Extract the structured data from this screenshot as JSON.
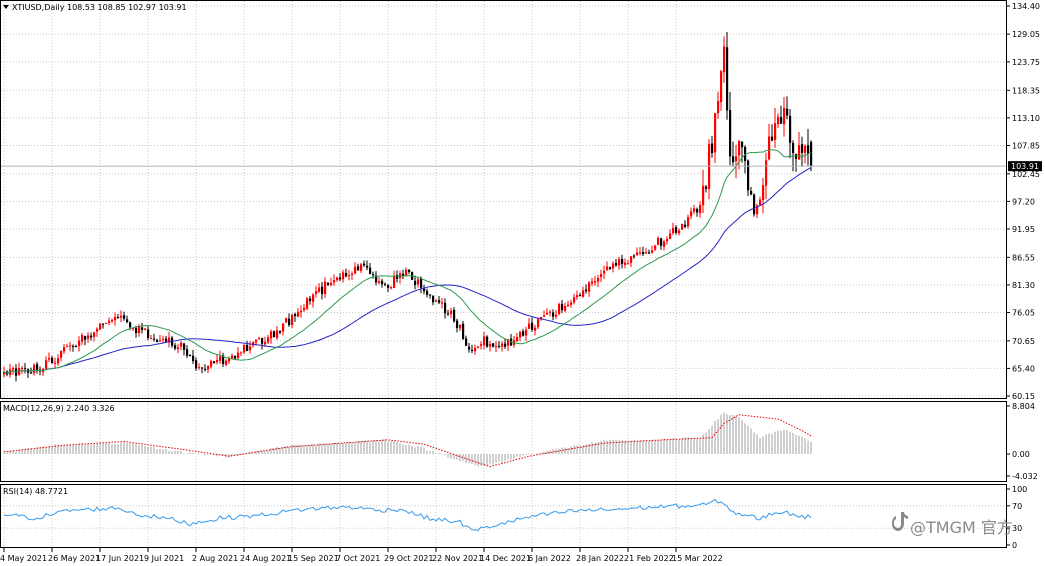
{
  "chart_data": {
    "type": "candlestick",
    "symbol_label": "XTIUSD,Daily",
    "ohlc_readout": "108.53 108.85 102.97 103.91",
    "current_price_label": "103.91",
    "watermark": "@TMGM 官方",
    "colors": {
      "bull": "#ff0000",
      "bear": "#000000",
      "ma_fast": "#2e9a4f",
      "ma_slow": "#2323c8",
      "macd_signal": "#e00000",
      "macd_hist": "#a0a0a0",
      "rsi": "#3399ee",
      "grid": "#c8c8c8",
      "axis": "#000000"
    },
    "price_axis": {
      "ylim": [
        60.15,
        134.4
      ],
      "ticks": [
        "134.40",
        "129.05",
        "123.75",
        "118.35",
        "113.10",
        "107.85",
        "102.45",
        "97.20",
        "91.95",
        "86.55",
        "81.30",
        "76.05",
        "70.65",
        "65.40",
        "60.15"
      ]
    },
    "x_axis": {
      "labels": [
        "4 May 2021",
        "26 May 2021",
        "17 Jun 2021",
        "9 Jul 2021",
        "2 Aug 2021",
        "24 Aug 2021",
        "15 Sep 2021",
        "7 Oct 2021",
        "29 Oct 2021",
        "22 Nov 2021",
        "14 Dec 2021",
        "6 Jan 2022",
        "28 Jan 2022",
        "21 Feb 2022",
        "15 Mar 2022"
      ],
      "bars_per_label": 16
    },
    "anchors": [
      [
        0,
        64.5
      ],
      [
        12,
        65.5
      ],
      [
        22,
        69.5
      ],
      [
        38,
        75.5
      ],
      [
        42,
        73.5
      ],
      [
        52,
        71.0
      ],
      [
        60,
        69.5
      ],
      [
        65,
        65.5
      ],
      [
        70,
        66.5
      ],
      [
        80,
        69.0
      ],
      [
        86,
        70.5
      ],
      [
        92,
        73.0
      ],
      [
        102,
        78.5
      ],
      [
        110,
        82.5
      ],
      [
        120,
        84.6
      ],
      [
        126,
        81.8
      ],
      [
        128,
        81.5
      ],
      [
        134,
        83.6
      ],
      [
        142,
        79.5
      ],
      [
        150,
        75.0
      ],
      [
        156,
        68.5
      ],
      [
        160,
        70.5
      ],
      [
        168,
        70.0
      ],
      [
        178,
        74.5
      ],
      [
        190,
        78.5
      ],
      [
        200,
        84.0
      ],
      [
        210,
        86.5
      ],
      [
        220,
        90.0
      ],
      [
        226,
        92.5
      ],
      [
        232,
        96.5
      ],
      [
        236,
        109.0
      ],
      [
        238,
        118.0
      ],
      [
        240,
        124.5
      ],
      [
        242,
        106.0
      ],
      [
        246,
        110.0
      ],
      [
        250,
        95.0
      ],
      [
        253,
        100.0
      ],
      [
        258,
        116.0
      ],
      [
        262,
        110.0
      ],
      [
        266,
        106.0
      ],
      [
        269,
        103.91
      ]
    ],
    "macd": {
      "label": "MACD(12,26,9) 2.240 3.326",
      "ylim": [
        -4.032,
        8.804
      ],
      "ticks": [
        "8.804",
        "0.00",
        "-4.032"
      ],
      "anchors": [
        [
          0,
          0.4
        ],
        [
          20,
          1.6
        ],
        [
          40,
          2.3
        ],
        [
          60,
          0.8
        ],
        [
          75,
          -0.4
        ],
        [
          95,
          1.3
        ],
        [
          128,
          2.6
        ],
        [
          140,
          1.8
        ],
        [
          158,
          -1.6
        ],
        [
          162,
          -2.3
        ],
        [
          175,
          -0.4
        ],
        [
          200,
          2.0
        ],
        [
          220,
          2.6
        ],
        [
          236,
          3.0
        ],
        [
          240,
          5.6
        ],
        [
          245,
          7.2
        ],
        [
          258,
          6.4
        ],
        [
          266,
          4.3
        ],
        [
          269,
          3.326
        ]
      ],
      "hist_anchors": [
        [
          0,
          0.3
        ],
        [
          20,
          1.8
        ],
        [
          40,
          2.0
        ],
        [
          60,
          0.3
        ],
        [
          75,
          -0.5
        ],
        [
          95,
          1.5
        ],
        [
          128,
          2.6
        ],
        [
          140,
          1.0
        ],
        [
          158,
          -2.3
        ],
        [
          162,
          -2.0
        ],
        [
          175,
          0.0
        ],
        [
          200,
          2.4
        ],
        [
          220,
          2.6
        ],
        [
          232,
          3.0
        ],
        [
          240,
          7.6
        ],
        [
          245,
          6.8
        ],
        [
          252,
          3.0
        ],
        [
          260,
          4.5
        ],
        [
          269,
          2.24
        ]
      ]
    },
    "rsi": {
      "label": "RSI(14) 48.7721",
      "ylim": [
        0,
        100
      ],
      "ticks": [
        "100",
        "70",
        "30",
        "0"
      ],
      "anchors": [
        [
          0,
          55
        ],
        [
          10,
          48
        ],
        [
          22,
          62
        ],
        [
          38,
          66
        ],
        [
          45,
          54
        ],
        [
          55,
          47
        ],
        [
          62,
          38
        ],
        [
          72,
          48
        ],
        [
          85,
          53
        ],
        [
          100,
          64
        ],
        [
          115,
          68
        ],
        [
          125,
          62
        ],
        [
          132,
          64
        ],
        [
          142,
          47
        ],
        [
          152,
          41
        ],
        [
          156,
          25
        ],
        [
          162,
          33
        ],
        [
          175,
          50
        ],
        [
          190,
          61
        ],
        [
          205,
          64
        ],
        [
          220,
          69
        ],
        [
          232,
          70
        ],
        [
          238,
          79
        ],
        [
          244,
          57
        ],
        [
          252,
          47
        ],
        [
          258,
          60
        ],
        [
          264,
          54
        ],
        [
          269,
          48.77
        ]
      ]
    }
  }
}
